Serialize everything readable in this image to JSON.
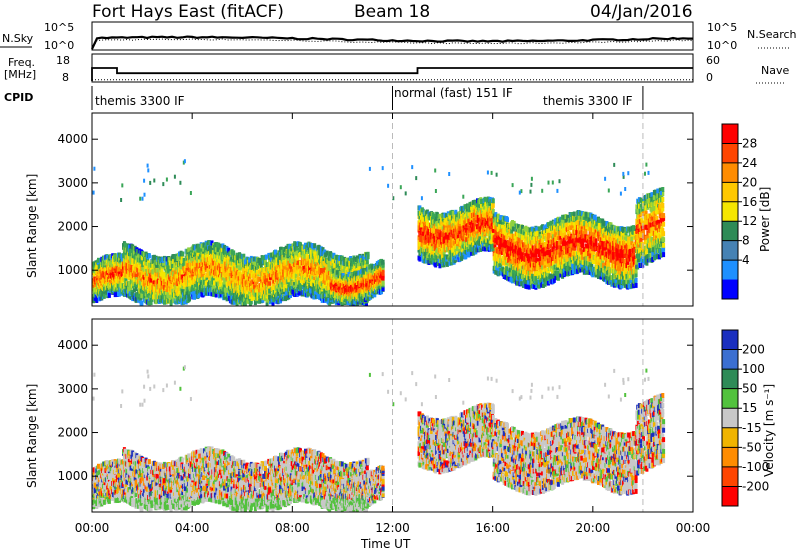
{
  "header": {
    "title": "Fort Hays East (fitACF)",
    "beam": "Beam 18",
    "date": "04/Jan/2016"
  },
  "sky_panel": {
    "left_label": "N.Sky",
    "right_label": "N.Search",
    "left_ticks": [
      "10^5",
      "10^0"
    ],
    "right_ticks": [
      "10^5",
      "10^0"
    ]
  },
  "freq_panel": {
    "left_label_line1": "Freq.",
    "left_label_line2": "[MHz]",
    "right_label": "Nave",
    "left_ticks": [
      "18",
      "8"
    ],
    "right_ticks": [
      "60",
      "0"
    ],
    "freq_steps": [
      [
        0,
        13
      ],
      [
        1,
        13
      ],
      [
        1,
        11
      ],
      [
        13,
        11
      ],
      [
        13,
        13
      ],
      [
        24,
        13
      ]
    ],
    "nave_level": 3
  },
  "cpid": {
    "label": "CPID",
    "segments": [
      {
        "text": "themis 3300 IF",
        "start": 0
      },
      {
        "text": "normal (fast) 151 IF",
        "start": 12
      },
      {
        "text": "themis 3300 IF",
        "start": 22
      }
    ],
    "boundaries": [
      12,
      22
    ]
  },
  "chart_data": [
    {
      "type": "heatmap",
      "name": "power",
      "xlabel": "",
      "ylabel": "Slant Range [km]",
      "xlim": [
        0,
        24
      ],
      "ylim": [
        180,
        4600
      ],
      "yticks": [
        "1000",
        "2000",
        "3000",
        "4000"
      ],
      "colorbar_label": "Power [dB]",
      "colorbar_ticks": [
        "28",
        "24",
        "20",
        "16",
        "12",
        "8",
        "4"
      ],
      "colorbar_colors": [
        "#ff0000",
        "#ff4500",
        "#ff8c00",
        "#ffc800",
        "#f5e600",
        "#2e8b57",
        "#4682b4",
        "#1e90ff",
        "#0000ff"
      ],
      "echo_bands": [
        {
          "t0": 0.0,
          "t1": 1.2,
          "r0": 280,
          "r1": 1200,
          "core": 0.7
        },
        {
          "t0": 1.2,
          "t1": 11.0,
          "r0": 280,
          "r1": 1500,
          "core": 0.6
        },
        {
          "t0": 9.5,
          "t1": 11.6,
          "r0": 400,
          "r1": 1100,
          "core": 0.8
        },
        {
          "t0": 13.0,
          "t1": 16.0,
          "r0": 1300,
          "r1": 2500,
          "core": 0.8
        },
        {
          "t0": 16.0,
          "t1": 21.7,
          "r0": 800,
          "r1": 2200,
          "core": 0.85
        },
        {
          "t0": 21.7,
          "t1": 22.8,
          "r0": 1200,
          "r1": 2800,
          "core": 0.7
        }
      ]
    },
    {
      "type": "heatmap",
      "name": "velocity",
      "xlabel": "Time UT",
      "ylabel": "Slant Range [km]",
      "xlim": [
        0,
        24
      ],
      "ylim": [
        180,
        4600
      ],
      "xticks": [
        "00:00",
        "04:00",
        "08:00",
        "12:00",
        "16:00",
        "20:00",
        "00:00"
      ],
      "yticks": [
        "1000",
        "2000",
        "3000",
        "4000"
      ],
      "colorbar_label": "Velocity [m s⁻¹]",
      "colorbar_ticks": [
        "200",
        "100",
        "50",
        "15",
        "-15",
        "-50",
        "-100",
        "-200"
      ],
      "colorbar_colors": [
        "#1a2fbf",
        "#3b6fd1",
        "#2e8b57",
        "#52c23d",
        "#c8c8c8",
        "#f0b400",
        "#ff8c00",
        "#ff4500",
        "#ff0000"
      ]
    }
  ],
  "footer": {
    "xlabel": "Time UT"
  }
}
